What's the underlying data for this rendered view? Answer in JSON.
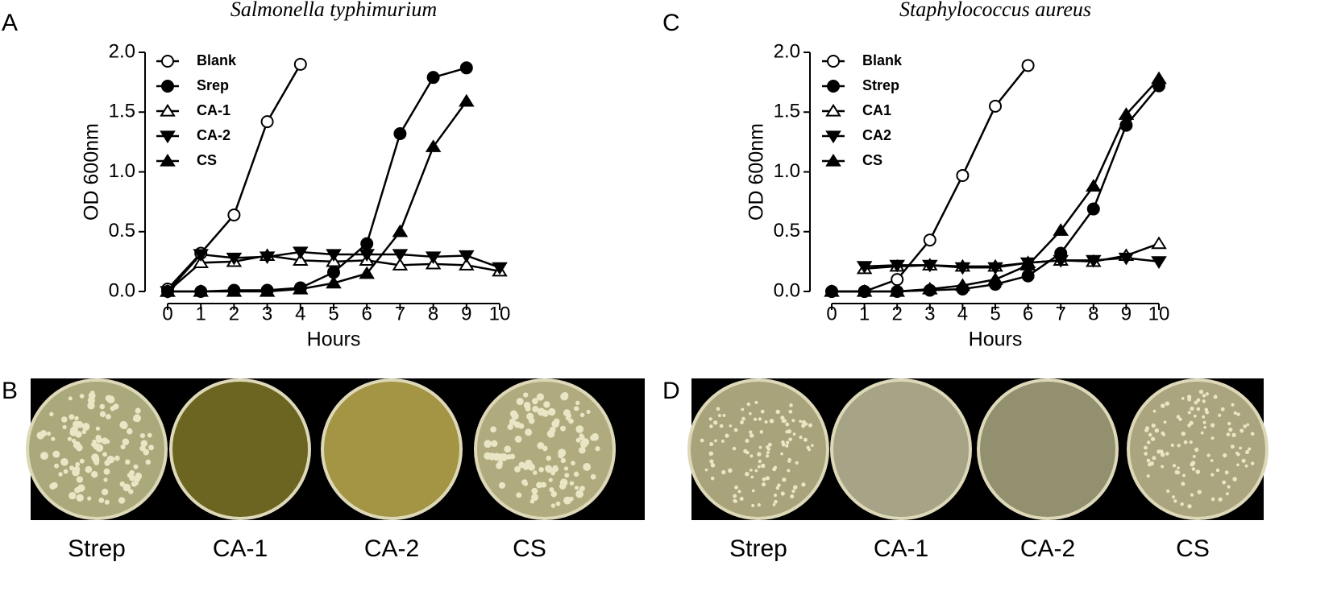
{
  "chart_data": [
    {
      "type": "line",
      "title": "Salmonella typhimurium",
      "x_label": "Hours",
      "y_label": "OD 600nm",
      "x": [
        0,
        1,
        2,
        3,
        4,
        5,
        6,
        7,
        8,
        9,
        10
      ],
      "xlim": [
        0,
        10
      ],
      "xticks": [
        0,
        1,
        2,
        3,
        4,
        5,
        6,
        7,
        8,
        9,
        10
      ],
      "ylim": [
        0,
        2
      ],
      "yticks": [
        {
          "value": 0,
          "label": "0.0"
        },
        {
          "value": 0.5,
          "label": "0.5"
        },
        {
          "value": 1,
          "label": "1.0"
        },
        {
          "value": 1.5,
          "label": "1.5"
        },
        {
          "value": 2,
          "label": "2.0"
        }
      ],
      "legend": "upper-left",
      "series": [
        {
          "name": "Blank",
          "color": "#000000",
          "marker": "open-circle",
          "values": [
            0.02,
            0.32,
            0.64,
            1.42,
            1.9,
            null,
            null,
            null,
            null,
            null,
            null
          ]
        },
        {
          "name": "Srep",
          "color": "#000000",
          "marker": "circle",
          "values": [
            0,
            0,
            0.01,
            0.01,
            0.03,
            0.16,
            0.4,
            1.32,
            1.79,
            1.87,
            null
          ]
        },
        {
          "name": "CA-1",
          "color": "#000000",
          "marker": "open-triangle",
          "values": [
            0,
            0.24,
            0.25,
            0.3,
            0.26,
            0.25,
            0.26,
            0.22,
            0.23,
            0.22,
            0.17
          ]
        },
        {
          "name": "CA-2",
          "color": "#000000",
          "marker": "triangle-down",
          "values": [
            0,
            0.31,
            0.28,
            0.29,
            0.33,
            0.31,
            0.31,
            0.31,
            0.29,
            0.3,
            0.2
          ]
        },
        {
          "name": "CS",
          "color": "#000000",
          "marker": "triangle",
          "values": [
            0,
            0,
            0,
            0,
            0.02,
            0.07,
            0.15,
            0.5,
            1.21,
            1.59,
            null
          ]
        }
      ]
    },
    {
      "type": "line",
      "title": "Staphylococcus aureus",
      "x_label": "Hours",
      "y_label": "OD 600nm",
      "x": [
        0,
        1,
        2,
        3,
        4,
        5,
        6,
        7,
        8,
        9,
        10
      ],
      "xlim": [
        0,
        10
      ],
      "xticks": [
        0,
        1,
        2,
        3,
        4,
        5,
        6,
        7,
        8,
        9,
        10
      ],
      "ylim": [
        0,
        2
      ],
      "yticks": [
        {
          "value": 0,
          "label": "0.0"
        },
        {
          "value": 0.5,
          "label": "0.5"
        },
        {
          "value": 1,
          "label": "1.0"
        },
        {
          "value": 1.5,
          "label": "1.5"
        },
        {
          "value": 2,
          "label": "2.0"
        }
      ],
      "legend": "upper-left",
      "series": [
        {
          "name": "Blank",
          "color": "#000000",
          "marker": "open-circle",
          "values": [
            0,
            0,
            0.1,
            0.43,
            0.97,
            1.55,
            1.89,
            null,
            null,
            null,
            null
          ]
        },
        {
          "name": "Strep",
          "color": "#000000",
          "marker": "circle",
          "values": [
            0,
            0,
            0,
            0.01,
            0.02,
            0.06,
            0.13,
            0.32,
            0.69,
            1.39,
            1.72
          ]
        },
        {
          "name": "CA1",
          "color": "#000000",
          "marker": "open-triangle",
          "values": [
            null,
            0.19,
            0.21,
            0.22,
            0.21,
            0.21,
            0.24,
            0.26,
            0.25,
            0.3,
            0.4
          ]
        },
        {
          "name": "CA2",
          "color": "#000000",
          "marker": "triangle-down",
          "values": [
            null,
            0.21,
            0.22,
            0.22,
            0.2,
            0.2,
            0.24,
            0.26,
            0.26,
            0.28,
            0.25
          ]
        },
        {
          "name": "CS",
          "color": "#000000",
          "marker": "triangle",
          "values": [
            0,
            0,
            0,
            0.02,
            0.05,
            0.1,
            0.22,
            0.51,
            0.88,
            1.48,
            1.78
          ]
        }
      ]
    }
  ],
  "panel_labels": [
    "A",
    "B",
    "C",
    "D"
  ],
  "plates_b": [
    "Strep",
    "CA-1",
    "CA-2",
    "CS"
  ],
  "plates_d": [
    "Strep",
    "CA-1",
    "CA-2",
    "CS"
  ]
}
